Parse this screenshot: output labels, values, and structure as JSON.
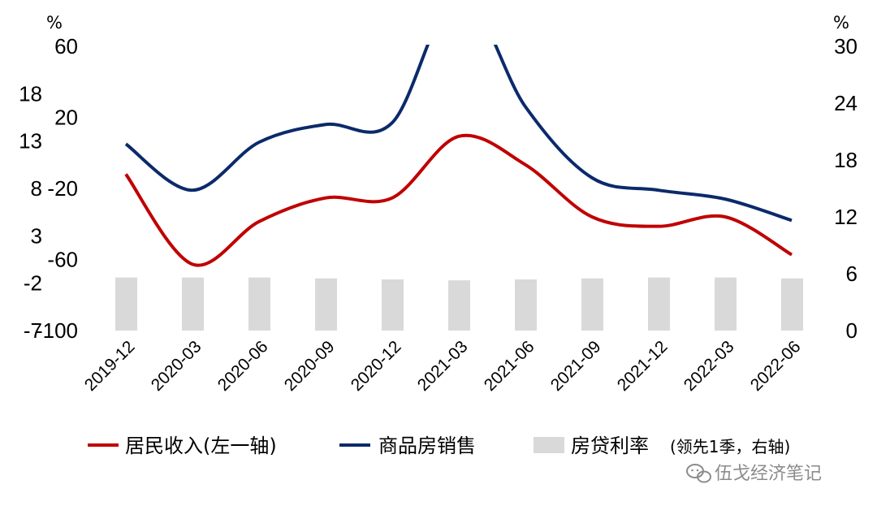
{
  "chart_data": {
    "type": "line",
    "categories": [
      "2019-12",
      "2020-03",
      "2020-06",
      "2020-09",
      "2020-12",
      "2021-03",
      "2021-06",
      "2021-09",
      "2021-12",
      "2022-03",
      "2022-06"
    ],
    "axes": {
      "left_outer": {
        "unit": "%",
        "ticks": [
          "18",
          "13",
          "8",
          "3",
          "-2",
          "-7"
        ],
        "ylim": [
          -7,
          23
        ]
      },
      "left_inner": {
        "unit": "%",
        "ticks": [
          "60",
          "20",
          "-20",
          "-60",
          "-100"
        ],
        "ylim": [
          -100,
          60
        ]
      },
      "right": {
        "unit": "%",
        "ticks": [
          "30",
          "24",
          "18",
          "12",
          "6",
          "0"
        ],
        "ylim": [
          0,
          30
        ]
      }
    },
    "series": [
      {
        "name": "居民收入(左一轴)",
        "axis": "left_outer",
        "color": "#c00000",
        "values": [
          9.5,
          0.0,
          4.5,
          7.0,
          7.0,
          13.5,
          10.5,
          5.0,
          4.0,
          5.0,
          1.0
        ]
      },
      {
        "name": "商品房销售",
        "axis": "left_inner",
        "color": "#0b2a6b",
        "values": [
          5,
          -21,
          6,
          16,
          17,
          90,
          26,
          -14,
          -21,
          -26,
          -38
        ]
      },
      {
        "name": "房贷利率",
        "legend_note": "(领先1季，右轴)",
        "axis": "right",
        "type": "bar",
        "color": "#d9d9d9",
        "values": [
          5.6,
          5.6,
          5.6,
          5.5,
          5.4,
          5.3,
          5.4,
          5.5,
          5.6,
          5.6,
          5.5
        ]
      }
    ]
  },
  "watermark": "伍戈经济笔记",
  "icons": {
    "watermark_icon": "wechat-icon"
  }
}
